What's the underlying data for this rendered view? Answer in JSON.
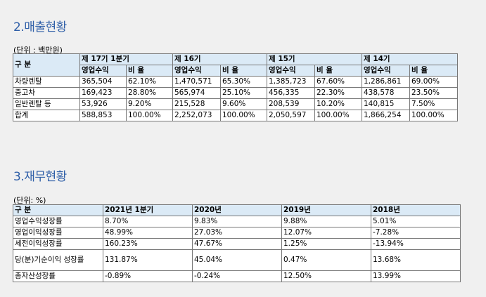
{
  "section1": {
    "title": "2.매출현황",
    "unit": "(단위 : 백만원)",
    "corner": "구 분",
    "periods": [
      "제 17기  1분기",
      "제 16기",
      "제 15기",
      "제 14기"
    ],
    "sub_headers": [
      "영업수익",
      "비 율"
    ],
    "rows": [
      {
        "label": "차량렌탈",
        "values": [
          "365,504",
          "62.10%",
          "1,470,571",
          "65.30%",
          "1,385,723",
          "67.60%",
          "1,286,861",
          "69.00%"
        ]
      },
      {
        "label": "중고차",
        "values": [
          "169,423",
          "28.80%",
          "565,974",
          "25.10%",
          "456,335",
          "22.30%",
          "438,578",
          "23.50%"
        ]
      },
      {
        "label": "일반렌탈 등",
        "values": [
          "53,926",
          "9.20%",
          "215,528",
          "9.60%",
          "208,539",
          "10.20%",
          "140,815",
          "7.50%"
        ]
      },
      {
        "label": "합계",
        "values": [
          "588,853",
          "100.00%",
          "2,252,073",
          "100.00%",
          "2,050,597",
          "100.00%",
          "1,866,254",
          "100.00%"
        ]
      }
    ]
  },
  "section2": {
    "title": "3.재무현황",
    "unit": "(단위: %)",
    "corner": "구 분",
    "years": [
      "2021년 1분기",
      "2020년",
      "2019년",
      "2018년"
    ],
    "rows": [
      {
        "label": "영업수익성장률",
        "values": [
          "8.70%",
          "9.83%",
          "9.88%",
          "5.01%"
        ]
      },
      {
        "label": "영업이익성장률",
        "values": [
          "48.99%",
          "27.03%",
          "12.07%",
          "-7.28%"
        ]
      },
      {
        "label": "세전이익성장률",
        "values": [
          "160.23%",
          "47.67%",
          "1.25%",
          "-13.94%"
        ]
      },
      {
        "label": "당(분)기순이익 성장률",
        "values": [
          "131.87%",
          "45.04%",
          "0.47%",
          "13.68%"
        ]
      },
      {
        "label": "총자산성장률",
        "values": [
          "-0.89%",
          "-0.24%",
          "12.50%",
          "13.99%"
        ]
      }
    ]
  }
}
